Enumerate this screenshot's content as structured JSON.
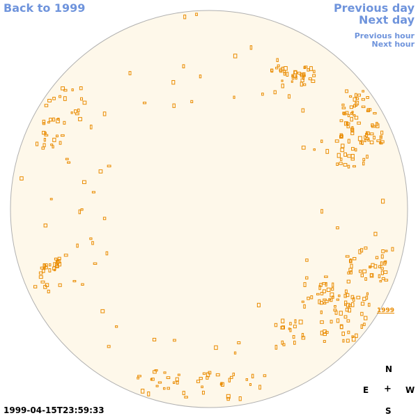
{
  "nav": {
    "back_label": "Back to 1999",
    "prev_day_label": "Previous day",
    "next_day_label": "Next day",
    "prev_hour_label": "Previous hour",
    "next_hour_label": "Next hour"
  },
  "timestamp": "1999-04-15T23:59:33",
  "compass": {
    "north": "N",
    "east": "E",
    "center": "+",
    "west": "W",
    "south": "S"
  },
  "region_label": "1999",
  "colors": {
    "disk_fill": "#fef8ea",
    "disk_stroke": "#b0b0b0",
    "feature": "#e98b00",
    "link": "#6f94dc"
  }
}
